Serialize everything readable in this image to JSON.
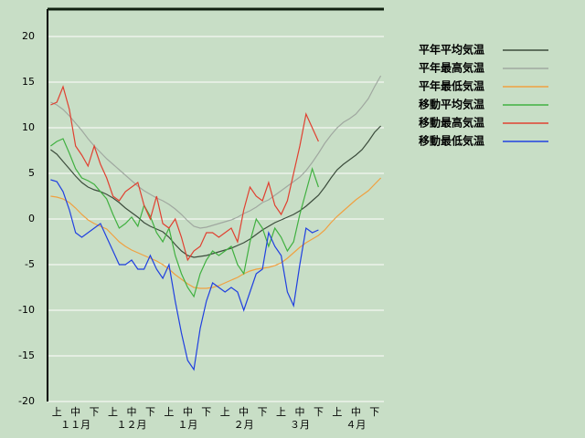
{
  "chart_data": {
    "type": "line",
    "categories": [
      null,
      "上",
      null,
      null,
      "中",
      null,
      null,
      "下",
      null,
      null,
      "上",
      null,
      null,
      "中",
      null,
      null,
      "下",
      null,
      null,
      "上",
      null,
      null,
      "中",
      null,
      null,
      "下",
      null,
      null,
      "上",
      null,
      null,
      "中",
      null,
      null,
      "下",
      null,
      null,
      "上",
      null,
      null,
      "中",
      null,
      null,
      "下",
      null,
      null,
      "上",
      null,
      null,
      "中",
      null,
      null,
      "下",
      null
    ],
    "months": [
      "１１月",
      "１２月",
      "１月",
      "２月",
      "３月",
      "４月"
    ],
    "ylim": [
      -20,
      23
    ],
    "yticks": [
      -20,
      -15,
      -10,
      -5,
      0,
      5,
      10,
      15,
      20
    ],
    "grid": true,
    "series": [
      {
        "name": "平年平均気温",
        "color": "#3c4c3c",
        "values": [
          7.6,
          7.1,
          6.3,
          5.5,
          4.7,
          4.0,
          3.5,
          3.2,
          3.0,
          2.7,
          2.3,
          1.8,
          1.2,
          0.7,
          0.2,
          -0.4,
          -0.8,
          -1.1,
          -1.4,
          -2.0,
          -2.8,
          -3.5,
          -4.0,
          -4.2,
          -4.1,
          -4.0,
          -3.8,
          -3.6,
          -3.4,
          -3.2,
          -2.9,
          -2.6,
          -2.2,
          -1.7,
          -1.2,
          -0.8,
          -0.4,
          -0.1,
          0.2,
          0.5,
          0.9,
          1.4,
          2.0,
          2.6,
          3.5,
          4.5,
          5.4,
          6.0,
          6.5,
          7.0,
          7.6,
          8.5,
          9.5,
          10.2
        ]
      },
      {
        "name": "平年最高気温",
        "color": "#a0a8a0",
        "values": [
          12.8,
          12.5,
          12,
          11.3,
          10.5,
          9.7,
          8.8,
          8,
          7.3,
          6.6,
          6,
          5.4,
          4.8,
          4.2,
          3.6,
          3.1,
          2.7,
          2.3,
          2,
          1.6,
          1.1,
          0.5,
          -0.2,
          -0.8,
          -1,
          -0.9,
          -0.7,
          -0.5,
          -0.3,
          -0.1,
          0.2,
          0.6,
          0.9,
          1.3,
          1.8,
          2.1,
          2.6,
          3.1,
          3.6,
          4.1,
          4.6,
          5.3,
          6.2,
          7.2,
          8.3,
          9.2,
          10,
          10.6,
          11,
          11.5,
          12.3,
          13.2,
          14.5,
          15.7
        ]
      },
      {
        "name": "平年最低気温",
        "color": "#f0a040",
        "values": [
          2.5,
          2.4,
          2.2,
          1.8,
          1.2,
          0.5,
          -0.1,
          -0.5,
          -0.8,
          -1.1,
          -1.8,
          -2.5,
          -3.0,
          -3.4,
          -3.7,
          -4.0,
          -4.3,
          -4.6,
          -5.0,
          -5.5,
          -6.1,
          -6.6,
          -7.1,
          -7.5,
          -7.6,
          -7.6,
          -7.5,
          -7.3,
          -7.0,
          -6.7,
          -6.4,
          -6.0,
          -5.7,
          -5.5,
          -5.4,
          -5.3,
          -5.1,
          -4.8,
          -4.3,
          -3.7,
          -3.1,
          -2.6,
          -2.2,
          -1.8,
          -1.2,
          -0.4,
          0.3,
          0.9,
          1.5,
          2.1,
          2.6,
          3.1,
          3.8,
          4.5
        ]
      },
      {
        "name": "移動平均気温",
        "color": "#40b040",
        "values": [
          8,
          8.5,
          8.8,
          7.2,
          5.5,
          4.5,
          4.2,
          3.8,
          3,
          2.2,
          0.5,
          -1,
          -0.5,
          0.2,
          -0.8,
          1.5,
          0.3,
          -1.5,
          -2.5,
          -1,
          -4,
          -6,
          -7.5,
          -8.5,
          -6,
          -4.5,
          -3.5,
          -4,
          -3.5,
          -3,
          -5,
          -6,
          -2.5,
          0,
          -1,
          -3,
          -1,
          -2,
          -3.5,
          -2.5,
          0.5,
          3,
          5.5,
          3.5,
          null,
          null,
          null,
          null,
          null,
          null,
          null,
          null,
          null,
          null
        ]
      },
      {
        "name": "移動最高気温",
        "color": "#e04030",
        "values": [
          12.5,
          12.8,
          14.5,
          12,
          8,
          7,
          5.8,
          8,
          6,
          4.5,
          2.5,
          2,
          3,
          3.5,
          4,
          1.5,
          0,
          2.5,
          -0.5,
          -1,
          0,
          -2,
          -4.5,
          -3.5,
          -3,
          -1.5,
          -1.5,
          -2,
          -1.5,
          -1,
          -2.5,
          1,
          3.5,
          2.5,
          2,
          4,
          1.5,
          0.5,
          2,
          5,
          8,
          11.5,
          10,
          8.5,
          null,
          null,
          null,
          null,
          null,
          null,
          null,
          null,
          null,
          null
        ]
      },
      {
        "name": "移動最低気温",
        "color": "#2040e0",
        "values": [
          4.3,
          4.1,
          3,
          1,
          -1.5,
          -2,
          -1.5,
          -1,
          -0.5,
          -2,
          -3.5,
          -5,
          -5,
          -4.5,
          -5.5,
          -5.5,
          -4,
          -5.5,
          -6.5,
          -5,
          -9,
          -12.5,
          -15.5,
          -16.5,
          -12,
          -9,
          -7,
          -7.5,
          -8,
          -7.5,
          -8,
          -10,
          -8,
          -6,
          -5.5,
          -1.5,
          -3,
          -4,
          -8,
          -9.5,
          -5,
          -1,
          -1.5,
          -1.2,
          null,
          null,
          null,
          null,
          null,
          null,
          null,
          null,
          null,
          null
        ]
      }
    ]
  }
}
